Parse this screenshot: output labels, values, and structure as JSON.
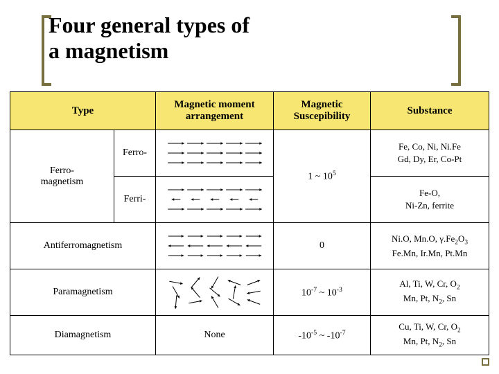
{
  "title_line1": "Four general types of",
  "title_line2": "a magnetism",
  "colors": {
    "bracket": "#786f3e",
    "header_bg": "#f7e772",
    "text": "#000000",
    "background": "#ffffff",
    "arrow": "#000000"
  },
  "columns": {
    "type": "Type",
    "arrangement": "Magnetic moment arrangement",
    "susceptibility": "Magnetic Suscepibility",
    "substance": "Substance"
  },
  "rows": {
    "ferromagnetism": {
      "group_label": "Ferro-magnetism",
      "ferro": {
        "label": "Ferro-",
        "arrangement": {
          "type": "arrows",
          "pattern": "parallel_long",
          "rows": 3,
          "cols": 5
        },
        "substance_html": "Fe, Co, Ni, Ni.Fe<br>Gd, Dy, Er, Co-Pt"
      },
      "ferri": {
        "label": "Ferri-",
        "arrangement": {
          "type": "arrows",
          "pattern": "ferri",
          "rows": 3,
          "cols": 5
        },
        "substance_html": "Fe-O,<br>Ni-Zn, ferrite"
      },
      "susceptibility_html": "1 ~ 10<sup>5</sup>"
    },
    "antiferromagnetism": {
      "label": "Antiferromagnetism",
      "arrangement": {
        "type": "arrows",
        "pattern": "antiparallel",
        "rows": 3,
        "cols": 5
      },
      "susceptibility_html": "0",
      "substance_html": "Ni.O, Mn.O, γ.Fe<sub>2</sub>O<sub>3</sub><br>Fe.Mn, Ir.Mn, Pt.Mn"
    },
    "paramagnetism": {
      "label": "Paramagnetism",
      "arrangement": {
        "type": "arrows",
        "pattern": "random",
        "rows": 3,
        "cols": 5
      },
      "susceptibility_html": "10<sup>-7</sup> ~ 10<sup>-3</sup>",
      "substance_html": "Al, Ti, W, Cr, O<sub>2</sub><br>Mn, Pt, N<sub>2</sub>, Sn"
    },
    "diamagnetism": {
      "label": "Diamagnetism",
      "arrangement": {
        "type": "text",
        "text": "None"
      },
      "susceptibility_html": "-10<sup>-5</sup> ~ -10<sup>-7</sup>",
      "substance_html": "Cu, Ti, W, Cr, O<sub>2</sub><br>Mn, Pt, N<sub>2</sub>, Sn"
    }
  }
}
